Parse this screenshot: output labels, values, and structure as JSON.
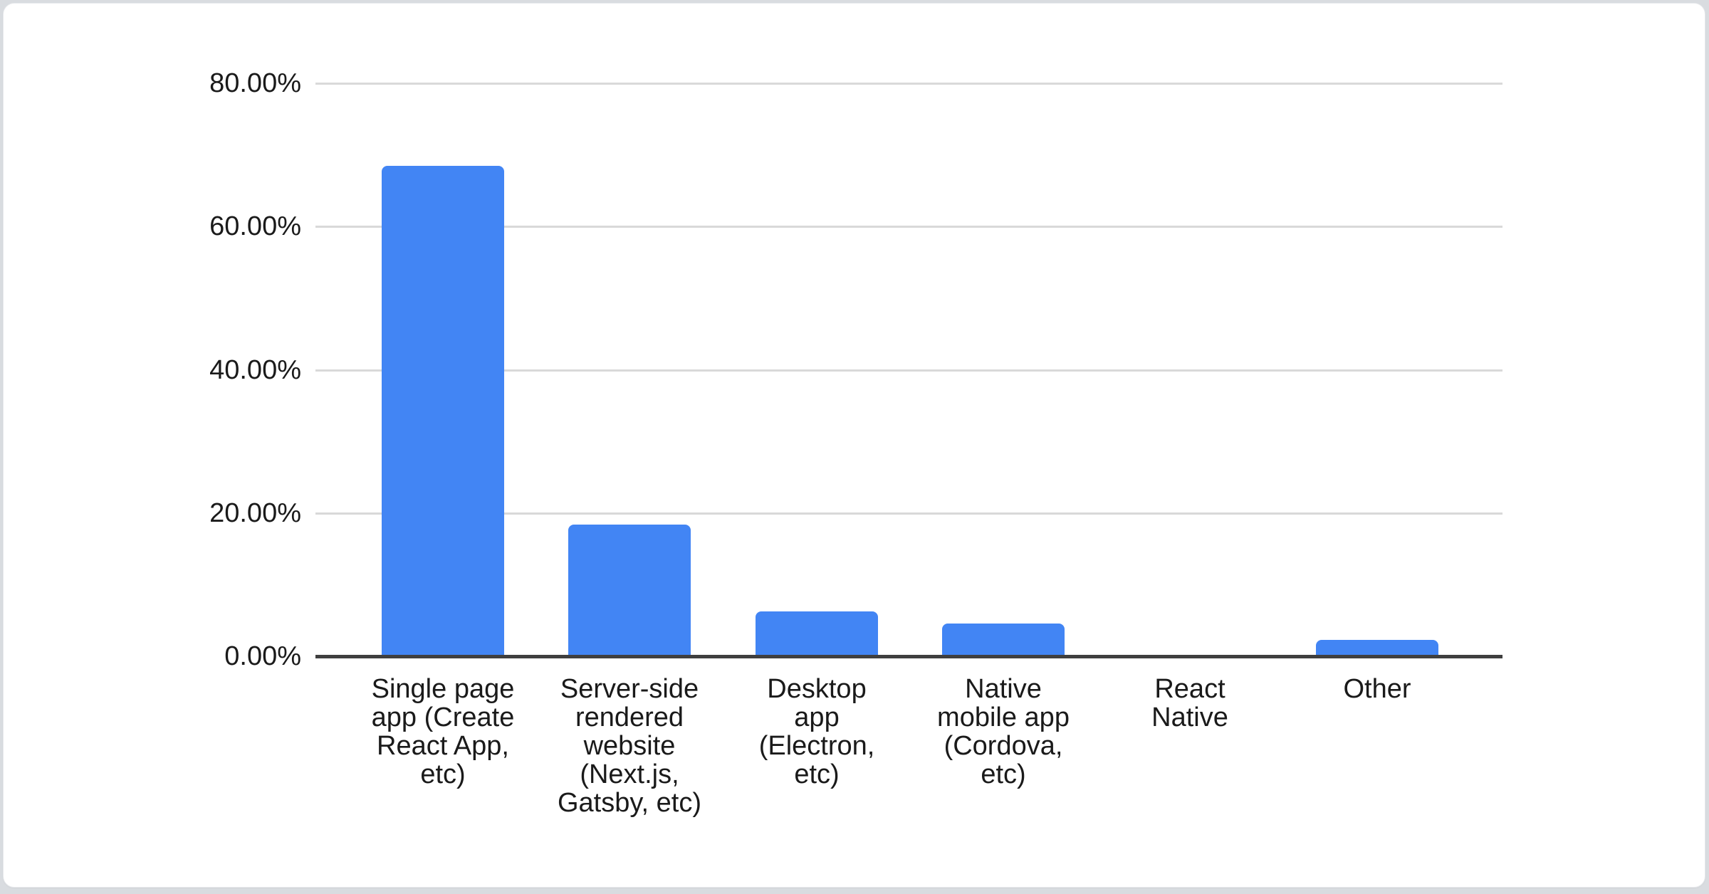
{
  "page": {
    "background_color": "#d9dce0",
    "card_background": "#ffffff",
    "card_border_color": "#e7e9ec"
  },
  "chart_data": {
    "type": "bar",
    "title": "",
    "xlabel": "",
    "ylabel": "",
    "categories": [
      "Single page app (Create React App, etc)",
      "Server-side rendered website (Next.js, Gatsby, etc)",
      "Desktop app (Electron, etc)",
      "Native mobile app (Cordova, etc)",
      "React Native",
      "Other"
    ],
    "category_label_lines": [
      [
        "Single page",
        "app (Create",
        "React App,",
        "etc)"
      ],
      [
        "Server-side",
        "rendered",
        "website",
        "(Next.js,",
        "Gatsby, etc)"
      ],
      [
        "Desktop",
        "app",
        "(Electron,",
        "etc)"
      ],
      [
        "Native",
        "mobile app",
        "(Cordova,",
        "etc)"
      ],
      [
        "React",
        "Native"
      ],
      [
        "Other"
      ]
    ],
    "values": [
      68.5,
      18.4,
      6.3,
      4.6,
      0,
      2.3
    ],
    "value_unit": "%",
    "y_ticks": [
      {
        "value": 0,
        "label": "0.00%"
      },
      {
        "value": 20,
        "label": "20.00%"
      },
      {
        "value": 40,
        "label": "40.00%"
      },
      {
        "value": 60,
        "label": "60.00%"
      },
      {
        "value": 80,
        "label": "80.00%"
      }
    ],
    "ylim": [
      0,
      80
    ],
    "grid": true,
    "legend": "none",
    "bar_color": "#4285F4",
    "grid_color": "#d9d9d9",
    "axis_line_color": "#3f3f3f",
    "label_color": "#1a1a1a"
  }
}
